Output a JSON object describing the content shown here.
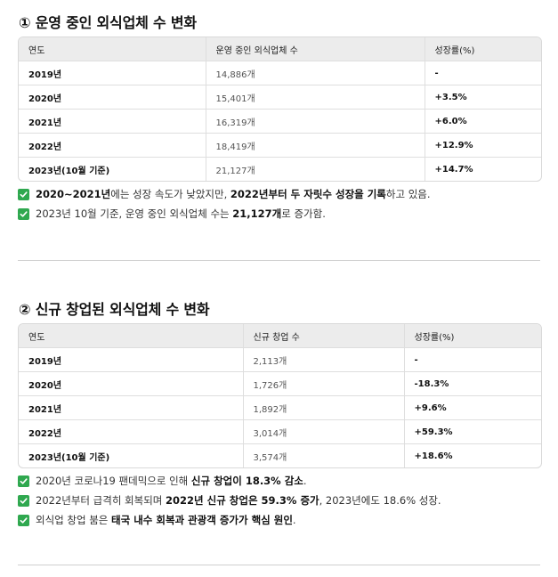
{
  "section1": {
    "heading": "① 운영 중인 외식업체 수 변화",
    "columns": [
      "연도",
      "운영 중인 외식업체 수",
      "성장률(%)"
    ],
    "rows": [
      {
        "year": "2019년",
        "count": "14,886개",
        "rate": "-"
      },
      {
        "year": "2020년",
        "count": "15,401개",
        "rate": "+3.5%"
      },
      {
        "year": "2021년",
        "count": "16,319개",
        "rate": "+6.0%"
      },
      {
        "year": "2022년",
        "count": "18,419개",
        "rate": "+12.9%"
      },
      {
        "year": "2023년(10월 기준)",
        "count": "21,127개",
        "rate": "+14.7%"
      }
    ],
    "notes": [
      {
        "bold1": "2020~2021년",
        "text1": "에는 성장 속도가 낮았지만, ",
        "bold2": "2022년부터 두 자릿수 성장을 기록",
        "text2": "하고 있음."
      },
      {
        "text1": "2023년 10월 기준, 운영 중인 외식업체 수는 ",
        "bold1": "21,127개",
        "text2": "로 증가함.",
        "bold2": ""
      }
    ]
  },
  "section2": {
    "heading": "② 신규 창업된 외식업체 수 변화",
    "columns": [
      "연도",
      "신규 창업 수",
      "성장률(%)"
    ],
    "rows": [
      {
        "year": "2019년",
        "count": "2,113개",
        "rate": "-"
      },
      {
        "year": "2020년",
        "count": "1,726개",
        "rate": "-18.3%"
      },
      {
        "year": "2021년",
        "count": "1,892개",
        "rate": "+9.6%"
      },
      {
        "year": "2022년",
        "count": "3,014개",
        "rate": "+59.3%"
      },
      {
        "year": "2023년(10월 기준)",
        "count": "3,574개",
        "rate": "+18.6%"
      }
    ],
    "notes": [
      {
        "text1": "2020년 코로나19 팬데믹으로 인해 ",
        "bold1": "신규 창업이 18.3% 감소",
        "text2": ".",
        "bold2": ""
      },
      {
        "text1": "2022년부터 급격히 회복되며 ",
        "bold1": "2022년 신규 창업은 59.3% 증가",
        "text2": ", 2023년에도 18.6% 성장.",
        "bold2": ""
      },
      {
        "text1": "외식업 창업 붐은 ",
        "bold1": "태국 내수 회복과 관광객 증가가 핵심 원인",
        "text2": ".",
        "bold2": ""
      }
    ]
  },
  "check_color": "#2fa84f"
}
